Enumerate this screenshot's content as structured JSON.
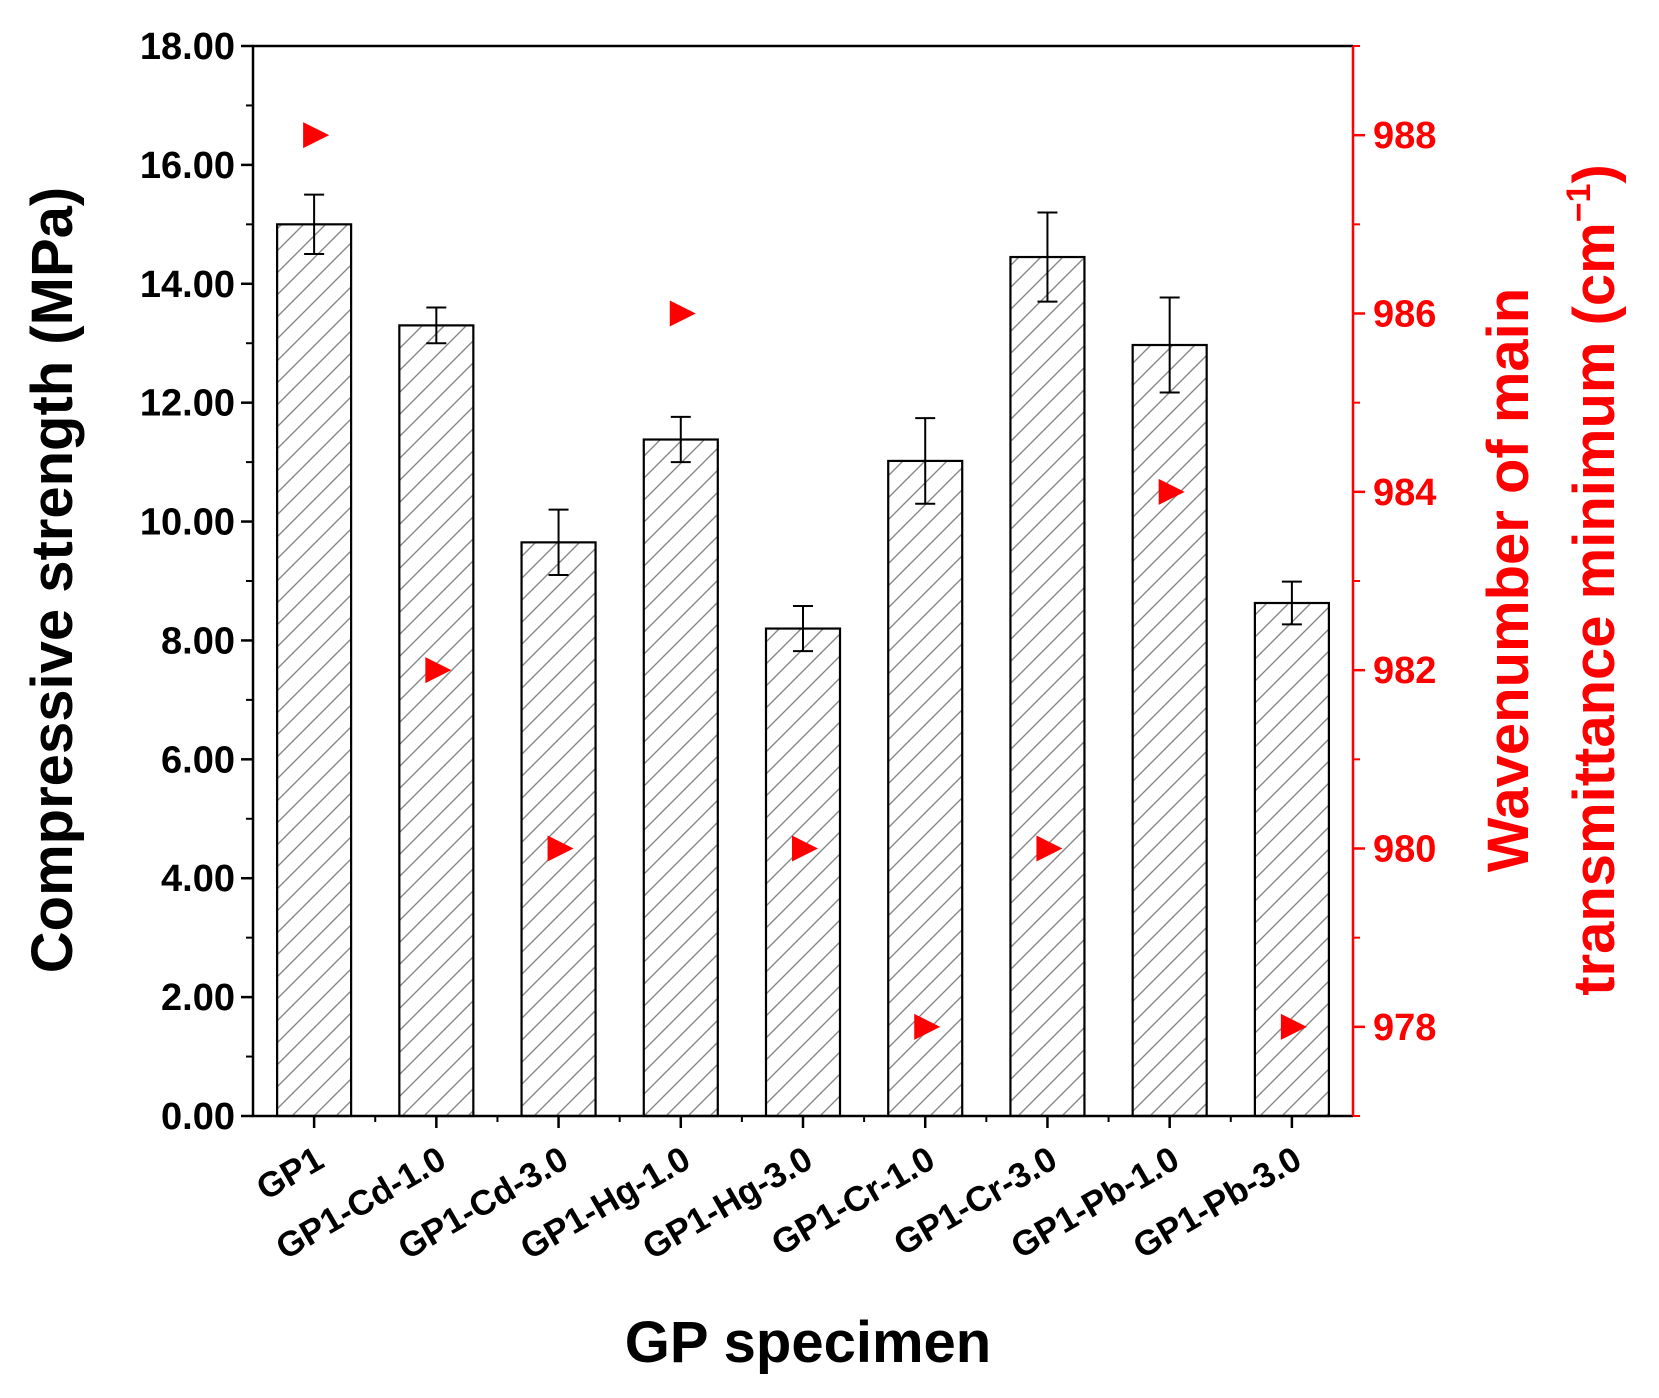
{
  "chart_data": {
    "type": "bar",
    "categories": [
      "GP1",
      "GP1-Cd-1.0",
      "GP1-Cd-3.0",
      "GP1-Hg-1.0",
      "GP1-Hg-3.0",
      "GP1-Cr-1.0",
      "GP1-Cr-3.0",
      "GP1-Pb-1.0",
      "GP1-Pb-3.0"
    ],
    "series": [
      {
        "name": "Compressive strength",
        "axis": "left",
        "kind": "bar",
        "pattern": "diagonal-hatch",
        "values": [
          15.0,
          13.3,
          9.65,
          11.38,
          8.2,
          11.02,
          14.45,
          12.97,
          8.63
        ],
        "errors": [
          0.5,
          0.3,
          0.55,
          0.38,
          0.38,
          0.72,
          0.75,
          0.8,
          0.36
        ]
      },
      {
        "name": "Wavenumber of main transmittance minimum",
        "axis": "right",
        "kind": "scatter",
        "marker": "right-triangle",
        "color": "#ff0000",
        "values": [
          988,
          982,
          980,
          986,
          980,
          978,
          980,
          984,
          978
        ]
      }
    ],
    "xlabel": "GP specimen",
    "ylabel": "Compressive strength (MPa)",
    "ylabel_right_line1": "Wavenumber of main",
    "ylabel_right_line2": "transmittance minimum (cm",
    "ylabel_right_sup": "−1",
    "ylabel_right_close": ")",
    "ylim": [
      0,
      18
    ],
    "ylim_right": [
      977,
      989
    ],
    "yticks": [
      "0.00",
      "2.00",
      "4.00",
      "6.00",
      "8.00",
      "10.00",
      "12.00",
      "14.00",
      "16.00",
      "18.00"
    ],
    "yticks_right": [
      "978",
      "980",
      "982",
      "984",
      "986",
      "988"
    ],
    "right_axis_color": "#ff0000",
    "grid": false
  }
}
